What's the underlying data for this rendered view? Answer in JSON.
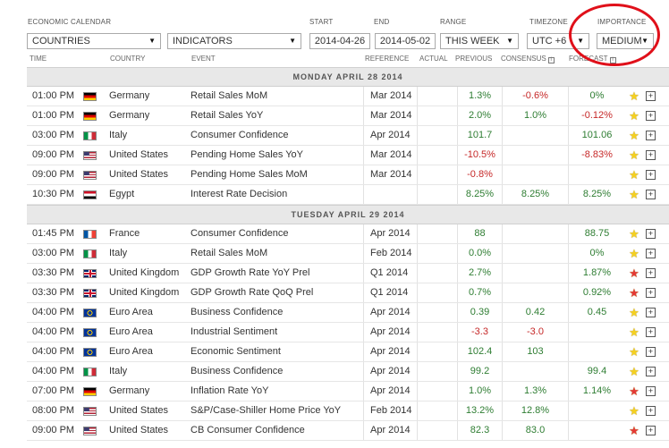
{
  "filters": {
    "calendar_label": "ECONOMIC CALENDAR",
    "start_label": "START",
    "end_label": "END",
    "range_label": "RANGE",
    "timezone_label": "TIMEZONE",
    "importance_label": "IMPORTANCE",
    "countries_value": "COUNTRIES",
    "indicators_value": "INDICATORS",
    "start_value": "2014-04-26",
    "end_value": "2014-05-02",
    "range_value": "THIS WEEK",
    "timezone_value": "UTC +6",
    "importance_value": "MEDIUM",
    "highlight_color": "#e0101a"
  },
  "columns": {
    "time": "TIME",
    "country": "COUNTRY",
    "event": "EVENT",
    "reference": "REFERENCE",
    "actual": "ACTUAL",
    "previous": "PREVIOUS",
    "consensus": "CONSENSUS",
    "forecast": "FORECAST"
  },
  "days": [
    {
      "label": "MONDAY APRIL 28 2014",
      "rows": [
        {
          "time": "01:00 PM",
          "flag": "germany",
          "country": "Germany",
          "event": "Retail Sales MoM",
          "reference": "Mar 2014",
          "actual": "",
          "previous": "1.3%",
          "prev_color": "green",
          "consensus": "-0.6%",
          "cons_color": "red",
          "forecast": "0%",
          "fore_color": "green",
          "star": "yellow"
        },
        {
          "time": "01:00 PM",
          "flag": "germany",
          "country": "Germany",
          "event": "Retail Sales YoY",
          "reference": "Mar 2014",
          "actual": "",
          "previous": "2.0%",
          "prev_color": "green",
          "consensus": "1.0%",
          "cons_color": "green",
          "forecast": "-0.12%",
          "fore_color": "red",
          "star": "yellow"
        },
        {
          "time": "03:00 PM",
          "flag": "italy",
          "country": "Italy",
          "event": "Consumer Confidence",
          "reference": "Apr 2014",
          "actual": "",
          "previous": "101.7",
          "prev_color": "green",
          "consensus": "",
          "cons_color": "green",
          "forecast": "101.06",
          "fore_color": "green",
          "star": "yellow"
        },
        {
          "time": "09:00 PM",
          "flag": "us",
          "country": "United States",
          "event": "Pending Home Sales YoY",
          "reference": "Mar 2014",
          "actual": "",
          "previous": "-10.5%",
          "prev_color": "red",
          "consensus": "",
          "cons_color": "green",
          "forecast": "-8.83%",
          "fore_color": "red",
          "star": "yellow"
        },
        {
          "time": "09:00 PM",
          "flag": "us",
          "country": "United States",
          "event": "Pending Home Sales MoM",
          "reference": "Mar 2014",
          "actual": "",
          "previous": "-0.8%",
          "prev_color": "red",
          "consensus": "",
          "cons_color": "green",
          "forecast": "",
          "fore_color": "green",
          "star": "yellow"
        },
        {
          "time": "10:30 PM",
          "flag": "egypt",
          "country": "Egypt",
          "event": "Interest Rate Decision",
          "reference": "",
          "actual": "",
          "previous": "8.25%",
          "prev_color": "green",
          "consensus": "8.25%",
          "cons_color": "green",
          "forecast": "8.25%",
          "fore_color": "green",
          "star": "yellow"
        }
      ]
    },
    {
      "label": "TUESDAY APRIL 29 2014",
      "rows": [
        {
          "time": "01:45 PM",
          "flag": "france",
          "country": "France",
          "event": "Consumer Confidence",
          "reference": "Apr 2014",
          "actual": "",
          "previous": "88",
          "prev_color": "green",
          "consensus": "",
          "cons_color": "green",
          "forecast": "88.75",
          "fore_color": "green",
          "star": "yellow"
        },
        {
          "time": "03:00 PM",
          "flag": "italy",
          "country": "Italy",
          "event": "Retail Sales MoM",
          "reference": "Feb 2014",
          "actual": "",
          "previous": "0.0%",
          "prev_color": "green",
          "consensus": "",
          "cons_color": "green",
          "forecast": "0%",
          "fore_color": "green",
          "star": "yellow"
        },
        {
          "time": "03:30 PM",
          "flag": "uk",
          "country": "United Kingdom",
          "event": "GDP Growth Rate YoY Prel",
          "reference": "Q1 2014",
          "actual": "",
          "previous": "2.7%",
          "prev_color": "green",
          "consensus": "",
          "cons_color": "green",
          "forecast": "1.87%",
          "fore_color": "green",
          "star": "red"
        },
        {
          "time": "03:30 PM",
          "flag": "uk",
          "country": "United Kingdom",
          "event": "GDP Growth Rate QoQ Prel",
          "reference": "Q1 2014",
          "actual": "",
          "previous": "0.7%",
          "prev_color": "green",
          "consensus": "",
          "cons_color": "green",
          "forecast": "0.92%",
          "fore_color": "green",
          "star": "red"
        },
        {
          "time": "04:00 PM",
          "flag": "eu",
          "country": "Euro Area",
          "event": "Business Confidence",
          "reference": "Apr 2014",
          "actual": "",
          "previous": "0.39",
          "prev_color": "green",
          "consensus": "0.42",
          "cons_color": "green",
          "forecast": "0.45",
          "fore_color": "green",
          "star": "yellow"
        },
        {
          "time": "04:00 PM",
          "flag": "eu",
          "country": "Euro Area",
          "event": "Industrial Sentiment",
          "reference": "Apr 2014",
          "actual": "",
          "previous": "-3.3",
          "prev_color": "red",
          "consensus": "-3.0",
          "cons_color": "red",
          "forecast": "",
          "fore_color": "green",
          "star": "yellow"
        },
        {
          "time": "04:00 PM",
          "flag": "eu",
          "country": "Euro Area",
          "event": "Economic Sentiment",
          "reference": "Apr 2014",
          "actual": "",
          "previous": "102.4",
          "prev_color": "green",
          "consensus": "103",
          "cons_color": "green",
          "forecast": "",
          "fore_color": "green",
          "star": "yellow"
        },
        {
          "time": "04:00 PM",
          "flag": "italy",
          "country": "Italy",
          "event": "Business Confidence",
          "reference": "Apr 2014",
          "actual": "",
          "previous": "99.2",
          "prev_color": "green",
          "consensus": "",
          "cons_color": "green",
          "forecast": "99.4",
          "fore_color": "green",
          "star": "yellow"
        },
        {
          "time": "07:00 PM",
          "flag": "germany",
          "country": "Germany",
          "event": "Inflation Rate YoY",
          "reference": "Apr 2014",
          "actual": "",
          "previous": "1.0%",
          "prev_color": "green",
          "consensus": "1.3%",
          "cons_color": "green",
          "forecast": "1.14%",
          "fore_color": "green",
          "star": "red"
        },
        {
          "time": "08:00 PM",
          "flag": "us",
          "country": "United States",
          "event": "S&P/Case-Shiller Home Price YoY",
          "reference": "Feb 2014",
          "actual": "",
          "previous": "13.2%",
          "prev_color": "green",
          "consensus": "12.8%",
          "cons_color": "green",
          "forecast": "",
          "fore_color": "green",
          "star": "yellow"
        },
        {
          "time": "09:00 PM",
          "flag": "us",
          "country": "United States",
          "event": "CB Consumer Confidence",
          "reference": "Apr 2014",
          "actual": "",
          "previous": "82.3",
          "prev_color": "green",
          "consensus": "83.0",
          "cons_color": "green",
          "forecast": "",
          "fore_color": "green",
          "star": "red"
        }
      ]
    }
  ],
  "flags": {
    "germany": [
      "#000000",
      "#dd0000",
      "#ffce00"
    ],
    "italy": [
      "#009246",
      "#ffffff",
      "#ce2b37"
    ],
    "france": [
      "#0055a4",
      "#ffffff",
      "#ef4135"
    ],
    "egypt": [
      "#ce1126",
      "#ffffff",
      "#000000"
    ],
    "us": [
      "#b22234",
      "#ffffff",
      "#3c3b6e"
    ],
    "uk": [
      "#012169",
      "#ffffff",
      "#c8102e"
    ],
    "eu": [
      "#003399",
      "#ffcc00"
    ]
  }
}
